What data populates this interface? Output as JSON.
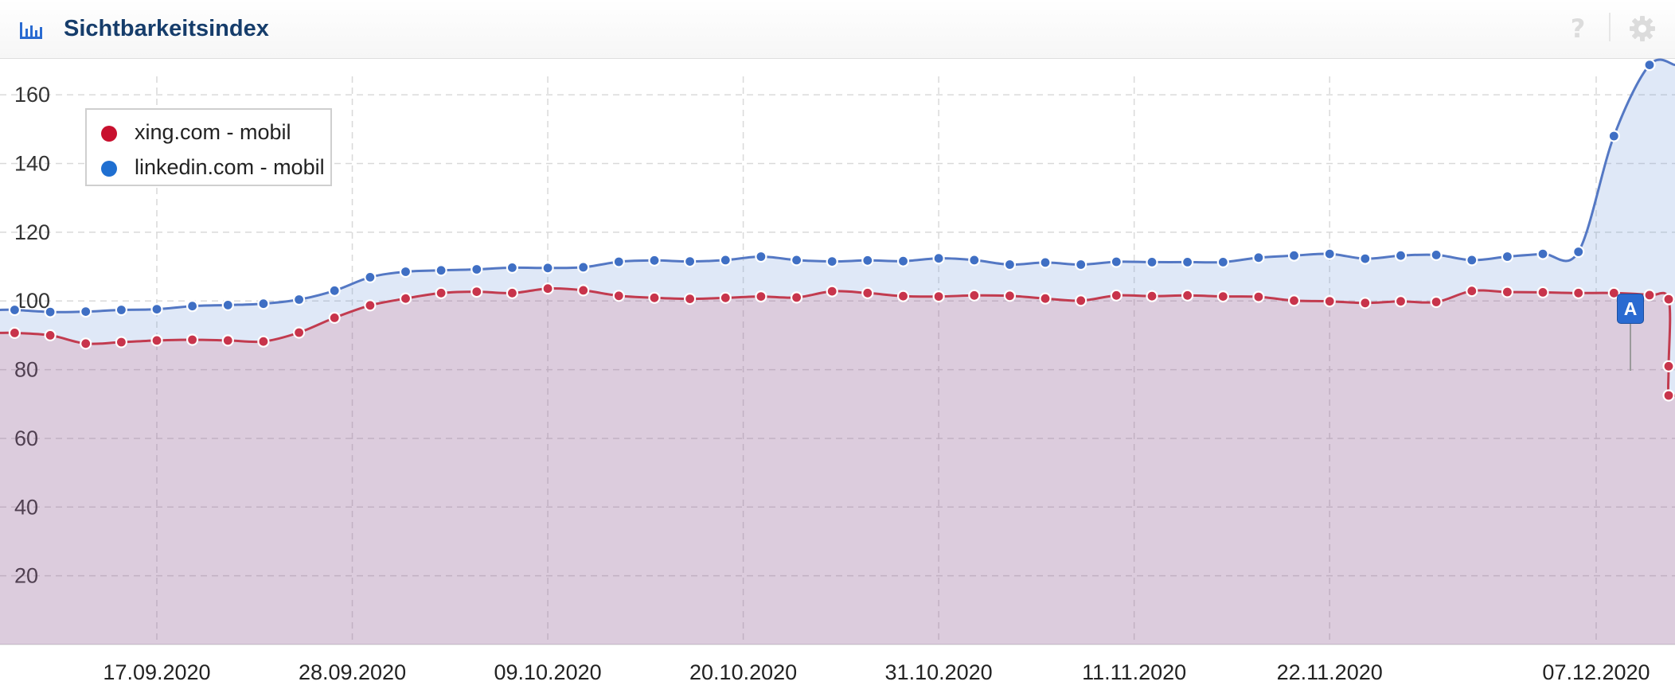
{
  "header": {
    "title": "Sichtbarkeitsindex",
    "icon": "bar-chart-icon",
    "help_icon": "question-mark-icon",
    "settings_icon": "gear-icon"
  },
  "annotation": {
    "label": "A",
    "date": "05.12.2020"
  },
  "chart_data": {
    "type": "area",
    "title": "",
    "xlabel": "",
    "ylabel": "",
    "x_tick_labels": [
      "17.09.2020",
      "28.09.2020",
      "09.10.2020",
      "20.10.2020",
      "31.10.2020",
      "11.11.2020",
      "22.11.2020",
      "07.12.2020"
    ],
    "y_ticks": [
      20,
      40,
      60,
      80,
      100,
      120,
      140,
      160
    ],
    "ylim": [
      0,
      170
    ],
    "x_start": "2020-09-09",
    "grid": true,
    "legend_position": "top-left",
    "series": [
      {
        "name": "xing.com - mobil",
        "color": "#c8102e",
        "values": [
          90.7,
          90.0,
          87.6,
          88.0,
          88.5,
          88.7,
          88.5,
          88.2,
          90.8,
          95.1,
          98.7,
          100.7,
          102.3,
          102.7,
          102.3,
          103.6,
          103.1,
          101.5,
          100.9,
          100.6,
          100.9,
          101.3,
          101.0,
          102.8,
          102.3,
          101.4,
          101.3,
          101.6,
          101.5,
          100.7,
          100.1,
          101.6,
          101.4,
          101.6,
          101.3,
          101.2,
          100.1,
          99.9,
          99.4,
          99.9,
          99.7,
          102.9,
          102.6,
          102.5,
          102.3,
          102.3,
          101.7,
          100.5,
          81.0,
          72.5
        ]
      },
      {
        "name": "linkedin.com - mobil",
        "color": "#1f6fd1",
        "values": [
          97.4,
          96.8,
          96.9,
          97.4,
          97.6,
          98.5,
          98.8,
          99.2,
          100.4,
          103.0,
          106.9,
          108.5,
          108.9,
          109.2,
          109.7,
          109.6,
          109.8,
          111.4,
          111.8,
          111.5,
          111.9,
          112.9,
          111.9,
          111.5,
          111.8,
          111.6,
          112.4,
          111.9,
          110.6,
          111.2,
          110.6,
          111.4,
          111.3,
          111.3,
          111.3,
          112.6,
          113.2,
          113.7,
          112.3,
          113.2,
          113.4,
          111.9,
          112.9,
          113.7,
          114.3,
          148.0,
          168.7
        ]
      }
    ]
  }
}
